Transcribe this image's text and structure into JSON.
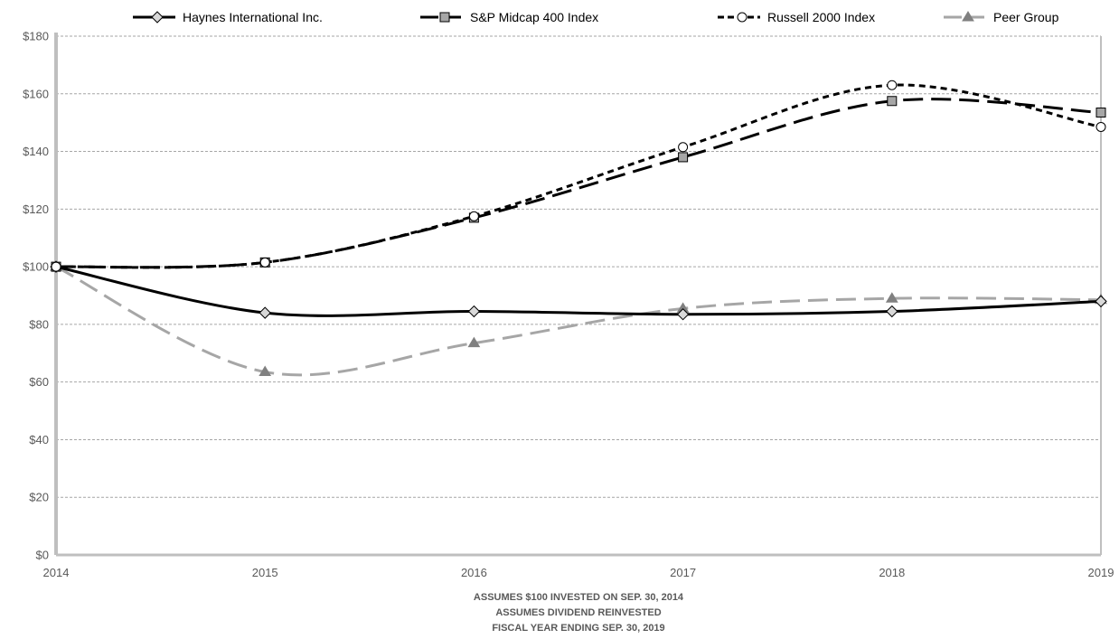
{
  "chart_data": {
    "type": "line",
    "x": [
      "2014",
      "2015",
      "2016",
      "2017",
      "2018",
      "2019"
    ],
    "ylim": [
      0,
      180
    ],
    "yticks": [
      0,
      20,
      40,
      60,
      80,
      100,
      120,
      140,
      160,
      180
    ],
    "ytick_labels": [
      "$0",
      "$20",
      "$40",
      "$60",
      "$80",
      "$100",
      "$120",
      "$140",
      "$160",
      "$180"
    ],
    "grid": true,
    "legend_position": "top",
    "series": [
      {
        "name": "Haynes International Inc.",
        "values": [
          100,
          84,
          84.5,
          83.5,
          84.5,
          88
        ],
        "color": "#000000",
        "dash": "solid",
        "marker": "diamond"
      },
      {
        "name": "S&P Midcap 400 Index",
        "values": [
          100,
          101.5,
          117,
          138,
          157.5,
          153.5
        ],
        "color": "#000000",
        "dash": "long-dash",
        "marker": "square"
      },
      {
        "name": "Russell 2000 Index",
        "values": [
          100,
          101.5,
          117.5,
          141.5,
          163,
          148.5
        ],
        "color": "#000000",
        "dash": "short-dash",
        "marker": "circle"
      },
      {
        "name": "Peer Group",
        "values": [
          100,
          63.5,
          73.5,
          85.5,
          89,
          88.5
        ],
        "color": "#a6a6a6",
        "dash": "long-dash",
        "marker": "triangle"
      }
    ],
    "notes": [
      "ASSUMES $100 INVESTED ON SEP. 30, 2014",
      "ASSUMES DIVIDEND REINVESTED",
      "FISCAL YEAR ENDING SEP. 30, 2019"
    ]
  }
}
